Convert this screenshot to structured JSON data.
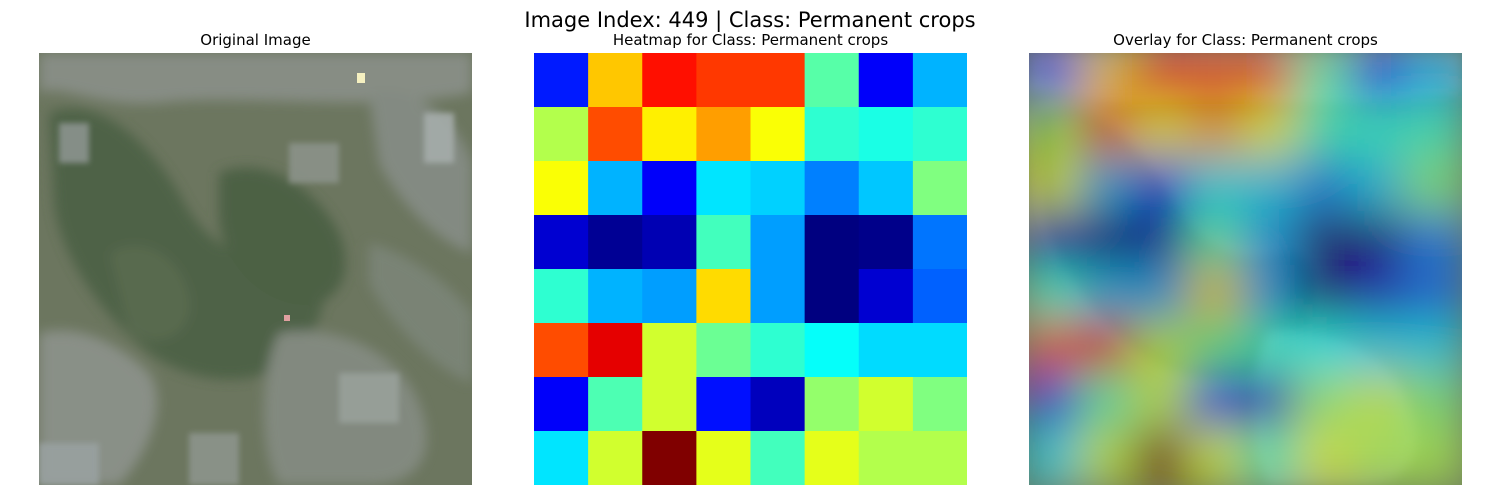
{
  "figure": {
    "suptitle": "Image Index: 449 | Class: Permanent crops"
  },
  "panels": [
    {
      "title": "Original Image"
    },
    {
      "title": "Heatmap for Class: Permanent crops"
    },
    {
      "title": "Overlay for Class: Permanent crops"
    }
  ],
  "heatmap": {
    "colormap": "jet",
    "grid_size": [
      8,
      8
    ],
    "values": [
      [
        0.15,
        0.68,
        0.86,
        0.82,
        0.82,
        0.46,
        0.12,
        0.3
      ],
      [
        0.55,
        0.8,
        0.64,
        0.72,
        0.62,
        0.42,
        0.4,
        0.42
      ],
      [
        0.62,
        0.3,
        0.12,
        0.35,
        0.33,
        0.25,
        0.32,
        0.5
      ],
      [
        0.08,
        0.02,
        0.05,
        0.44,
        0.28,
        0.0,
        0.01,
        0.24
      ],
      [
        0.42,
        0.3,
        0.28,
        0.66,
        0.28,
        0.0,
        0.08,
        0.22
      ],
      [
        0.8,
        0.9,
        0.58,
        0.48,
        0.42,
        0.38,
        0.34,
        0.34
      ],
      [
        0.12,
        0.45,
        0.58,
        0.14,
        0.06,
        0.52,
        0.58,
        0.5
      ],
      [
        0.35,
        0.58,
        1.0,
        0.6,
        0.44,
        0.6,
        0.55,
        0.55
      ]
    ]
  },
  "overlay": {
    "opacity": 0.5
  },
  "colors": {
    "original_base": "#69745f",
    "original_dark_veg": "#4f6347",
    "original_light_urban": "#8d928f",
    "original_field": "#8a9484"
  }
}
